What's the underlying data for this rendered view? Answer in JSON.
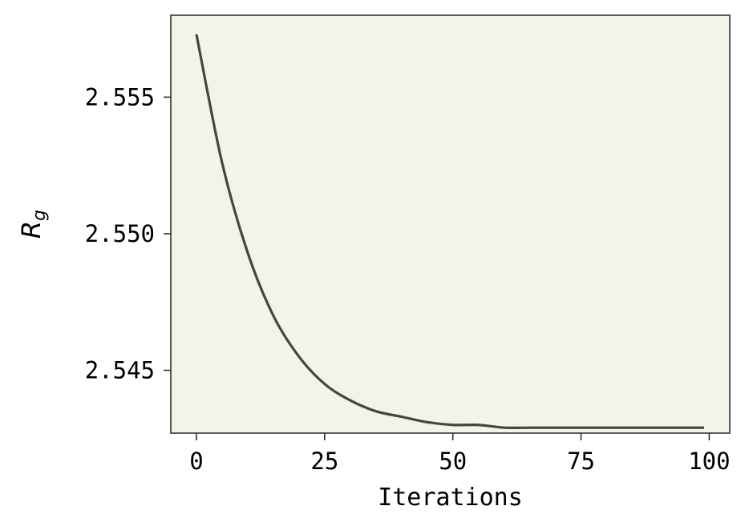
{
  "chart_data": {
    "type": "line",
    "title": "",
    "xlabel": "Iterations",
    "ylabel_main": "R",
    "ylabel_sub": "g",
    "xlim": [
      -5,
      104
    ],
    "ylim": [
      2.5427,
      2.558
    ],
    "xticks": [
      0,
      25,
      50,
      75,
      100
    ],
    "xtick_labels": [
      "0",
      "25",
      "50",
      "75",
      "100"
    ],
    "yticks": [
      2.545,
      2.55,
      2.555
    ],
    "ytick_labels": [
      "2.545",
      "2.550",
      "2.555"
    ],
    "grid": false,
    "background_color": "#f3f3e7",
    "line_color": "#454545",
    "series": [
      {
        "x": [
          0,
          5,
          10,
          15,
          20,
          25,
          30,
          35,
          40,
          45,
          50,
          55,
          60,
          65,
          70,
          75,
          80,
          85,
          90,
          95,
          99
        ],
        "y": [
          2.5573,
          2.5526,
          2.5493,
          2.547,
          2.5455,
          2.5445,
          2.5439,
          2.5435,
          2.5433,
          2.5431,
          2.543,
          2.543,
          2.5429,
          2.5429,
          2.5429,
          2.5429,
          2.5429,
          2.5429,
          2.5429,
          2.5429,
          2.5429
        ]
      }
    ]
  }
}
